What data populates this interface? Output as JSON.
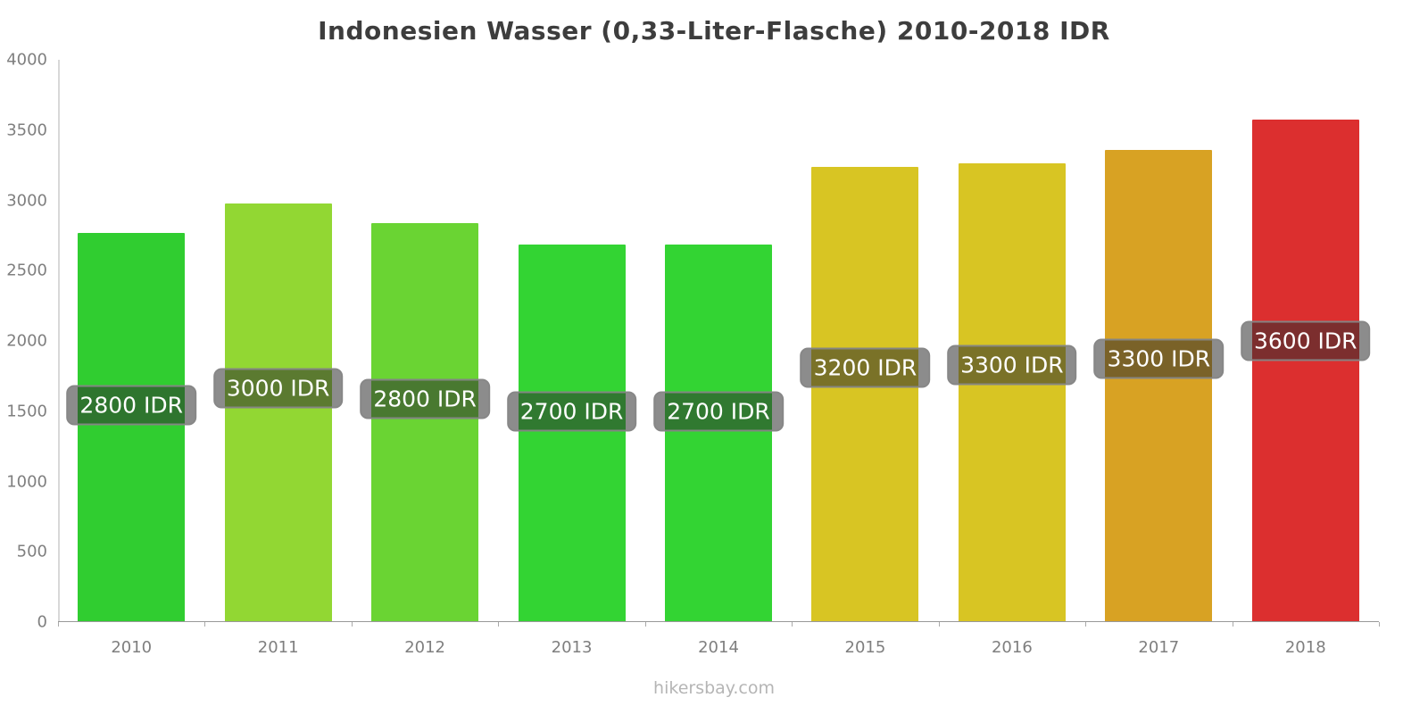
{
  "page": {
    "footer": "hikersbay.com"
  },
  "chart_data": {
    "type": "bar",
    "title": "Indonesien Wasser (0,33-Liter-Flasche) 2010-2018 IDR",
    "categories": [
      "2010",
      "2011",
      "2012",
      "2013",
      "2014",
      "2015",
      "2016",
      "2017",
      "2018"
    ],
    "values": [
      2760,
      2970,
      2830,
      2680,
      2680,
      3230,
      3260,
      3350,
      3570
    ],
    "labels": [
      "2800 IDR",
      "3000 IDR",
      "2800 IDR",
      "2700 IDR",
      "2700 IDR",
      "3200 IDR",
      "3300 IDR",
      "3300 IDR",
      "3600 IDR"
    ],
    "colors": [
      "#30cd30",
      "#92d733",
      "#6ad433",
      "#33d433",
      "#33d433",
      "#d8c523",
      "#d8c523",
      "#d8a223",
      "#dc2f2f"
    ],
    "ylabel": "",
    "xlabel": "",
    "ylim": [
      0,
      4000
    ],
    "yticks": [
      0,
      500,
      1000,
      1500,
      2000,
      2500,
      3000,
      3500,
      4000
    ],
    "grid": false,
    "legend": false
  }
}
